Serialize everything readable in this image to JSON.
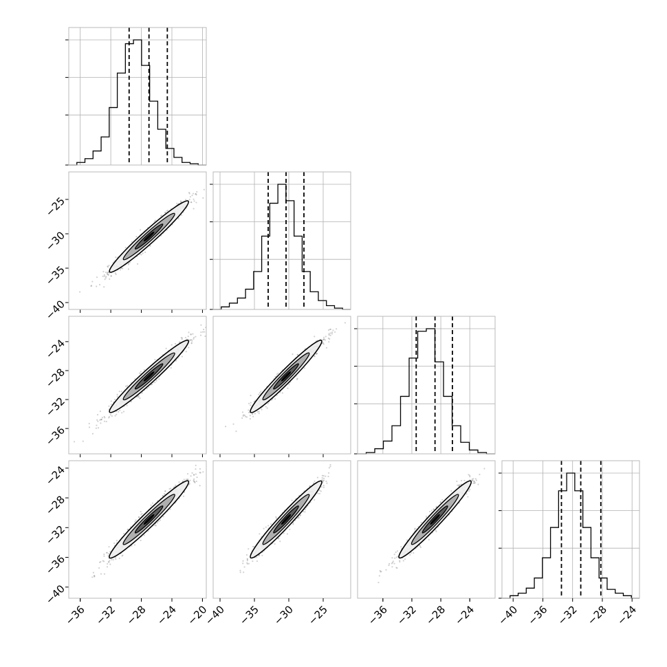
{
  "chart_data": {
    "type": "corner",
    "description_free": true,
    "dims": 4,
    "grid": true,
    "colors": {
      "line": "#000000",
      "grid": "#b0b0b0",
      "points": "#7a7a7a"
    },
    "quantile_marks": [
      0.16,
      0.5,
      0.84
    ],
    "ranges": [
      [
        -37.5,
        -19.5
      ],
      [
        -41,
        -21
      ],
      [
        -39.5,
        -20.5
      ],
      [
        -41.5,
        -23
      ]
    ],
    "ticks": [
      [
        -36,
        -32,
        -28,
        -24,
        -20
      ],
      [
        -40,
        -35,
        -30,
        -25
      ],
      [
        -36,
        -32,
        -28,
        -24
      ],
      [
        -40,
        -36,
        -32,
        -28,
        -24
      ]
    ],
    "tick_labels": [
      [
        "−36",
        "−32",
        "−28",
        "−24",
        "−20"
      ],
      [
        "−40",
        "−35",
        "−30",
        "−25"
      ],
      [
        "−36",
        "−32",
        "−28",
        "−24"
      ],
      [
        "−40",
        "−36",
        "−32",
        "−28",
        "−24"
      ]
    ],
    "means": [
      -27.0,
      -30.4,
      -28.8,
      -30.9
    ],
    "stds": [
      2.6,
      2.6,
      2.5,
      2.6
    ],
    "quantiles": [
      [
        -29.6,
        -27.0,
        -24.6
      ],
      [
        -33.0,
        -30.4,
        -27.8
      ],
      [
        -31.4,
        -28.8,
        -26.4
      ],
      [
        -33.5,
        -30.9,
        -28.2
      ]
    ],
    "histograms": [
      {
        "edges": [
          -37.5,
          -19.5
        ],
        "counts": [
          0,
          2,
          5,
          11,
          22,
          45,
          72,
          95,
          98,
          78,
          50,
          28,
          13,
          6,
          2,
          1,
          0
        ]
      },
      {
        "edges": [
          -41,
          -21
        ],
        "counts": [
          0,
          2,
          5,
          9,
          16,
          30,
          58,
          84,
          99,
          86,
          58,
          30,
          14,
          7,
          3,
          1,
          0
        ]
      },
      {
        "edges": [
          -39.5,
          -20.5
        ],
        "counts": [
          0,
          1,
          4,
          10,
          22,
          45,
          75,
          96,
          98,
          72,
          45,
          22,
          9,
          3,
          1,
          0
        ]
      },
      {
        "edges": [
          -41.5,
          -23
        ],
        "counts": [
          0,
          2,
          4,
          8,
          16,
          32,
          56,
          85,
          99,
          85,
          56,
          32,
          16,
          7,
          4,
          2,
          0
        ]
      }
    ],
    "correlation": 0.97,
    "scatter_points_per_panel": 900
  }
}
